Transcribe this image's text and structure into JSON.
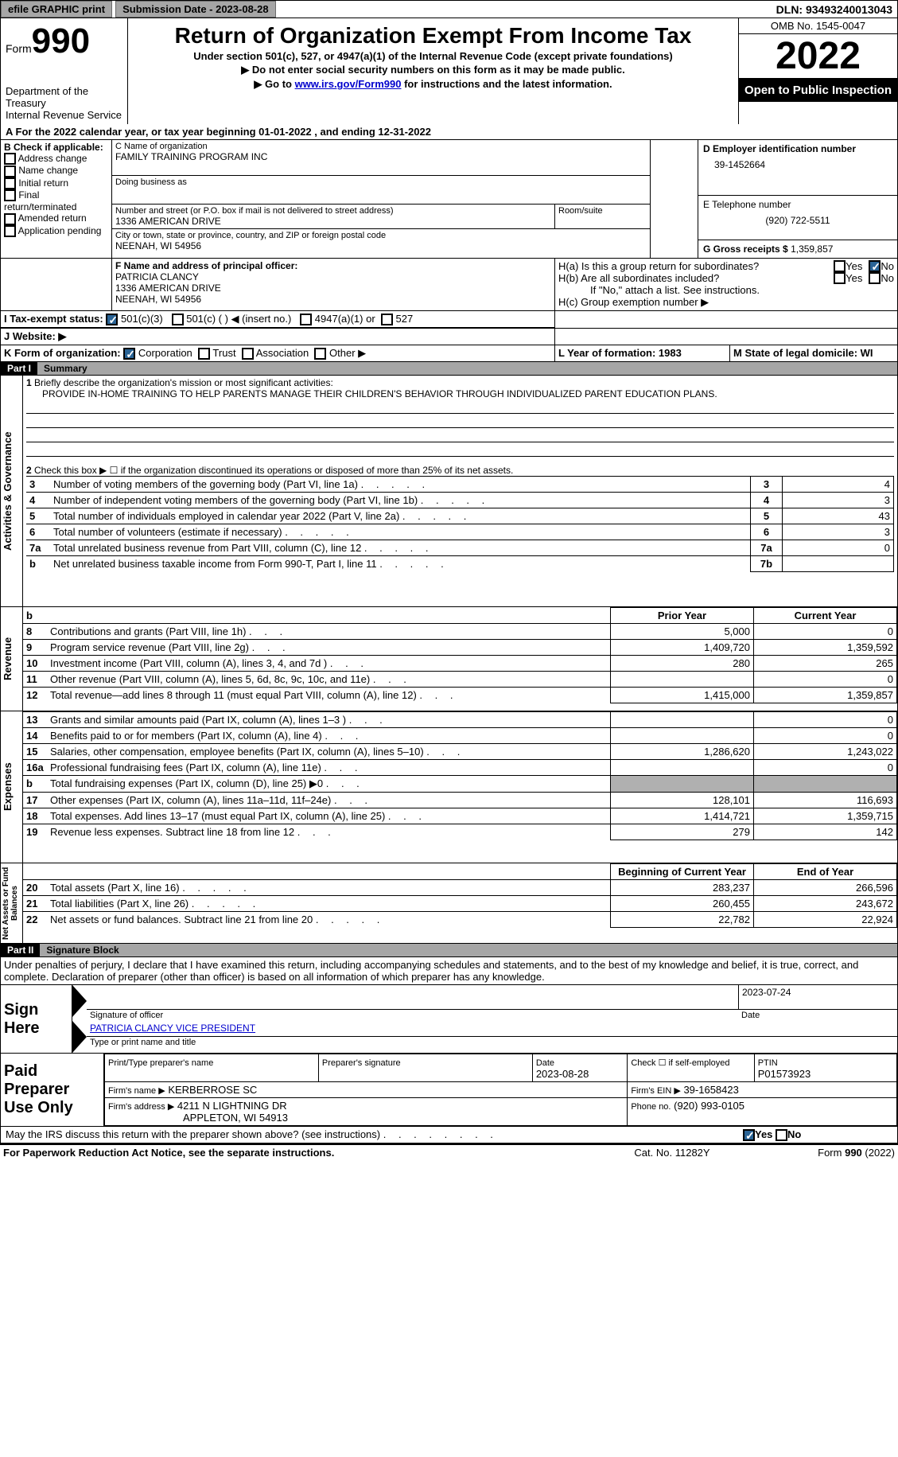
{
  "topbar": {
    "efile_label": "efile GRAPHIC print",
    "submission_label": "Submission Date - 2023-08-28",
    "dln_label": "DLN: 93493240013043"
  },
  "header": {
    "form_label": "Form",
    "form_number": "990",
    "dept_text": "Department of the Treasury",
    "irs_text": "Internal Revenue Service",
    "title": "Return of Organization Exempt From Income Tax",
    "subtitle": "Under section 501(c), 527, or 4947(a)(1) of the Internal Revenue Code (except private foundations)",
    "note1": "▶ Do not enter social security numbers on this form as it may be made public.",
    "note2_pre": "▶ Go to ",
    "note2_link": "www.irs.gov/Form990",
    "note2_post": " for instructions and the latest information.",
    "omb": "OMB No. 1545-0047",
    "year": "2022",
    "open_text": "Open to Public Inspection"
  },
  "line_a": "For the 2022 calendar year, or tax year beginning 01-01-2022    , and ending 12-31-2022",
  "section_b": {
    "label": "B Check if applicable:",
    "items": [
      "Address change",
      "Name change",
      "Initial return",
      "Final return/terminated",
      "Amended return",
      "Application pending"
    ]
  },
  "section_c": {
    "label_name": "C Name of organization",
    "org_name": "FAMILY TRAINING PROGRAM INC",
    "dba_label": "Doing business as",
    "street_label": "Number and street (or P.O. box if mail is not delivered to street address)",
    "street": "1336 AMERICAN DRIVE",
    "room_label": "Room/suite",
    "city_label": "City or town, state or province, country, and ZIP or foreign postal code",
    "city": "NEENAH, WI  54956"
  },
  "section_d": {
    "label": "D Employer identification number",
    "value": "39-1452664"
  },
  "section_e": {
    "label": "E Telephone number",
    "value": "(920) 722-5511"
  },
  "section_g": {
    "label": "G Gross receipts $",
    "value": "1,359,857"
  },
  "section_f": {
    "label": "F  Name and address of principal officer:",
    "name": "PATRICIA CLANCY",
    "street": "1336 AMERICAN DRIVE",
    "city": "NEENAH, WI  54956"
  },
  "section_h": {
    "ha_label": "H(a)  Is this a group return for subordinates?",
    "hb_label": "H(b)  Are all subordinates included?",
    "hb_note": "If \"No,\" attach a list. See instructions.",
    "hc_label": "H(c)  Group exemption number ▶",
    "yes": "Yes",
    "no": "No"
  },
  "section_i": {
    "label": "I    Tax-exempt status:",
    "i501c3": "501(c)(3)",
    "i501c": "501(c) (  ) ◀ (insert no.)",
    "i4947": "4947(a)(1) or",
    "i527": "527"
  },
  "section_j": {
    "label": "J    Website: ▶"
  },
  "section_k": {
    "label": "K Form of organization:",
    "corp": "Corporation",
    "trust": "Trust",
    "assoc": "Association",
    "other": "Other ▶"
  },
  "section_l": {
    "label": "L Year of formation: 1983"
  },
  "section_m": {
    "label": "M State of legal domicile: WI"
  },
  "part1": {
    "band": "Part I",
    "title": "Summary"
  },
  "p1_line1_label": "Briefly describe the organization's mission or most significant activities:",
  "p1_line1_text": "PROVIDE IN-HOME TRAINING TO HELP PARENTS MANAGE THEIR CHILDREN'S BEHAVIOR THROUGH INDIVIDUALIZED PARENT EDUCATION PLANS.",
  "p1_line2": "Check this box ▶ ☐ if the organization discontinued its operations or disposed of more than 25% of its net assets.",
  "p1_rows_top": [
    {
      "n": "3",
      "label": "Number of voting members of the governing body (Part VI, line 1a)",
      "box": "3",
      "val": "4"
    },
    {
      "n": "4",
      "label": "Number of independent voting members of the governing body (Part VI, line 1b)",
      "box": "4",
      "val": "3"
    },
    {
      "n": "5",
      "label": "Total number of individuals employed in calendar year 2022 (Part V, line 2a)",
      "box": "5",
      "val": "43"
    },
    {
      "n": "6",
      "label": "Total number of volunteers (estimate if necessary)",
      "box": "6",
      "val": "3"
    },
    {
      "n": "7a",
      "label": "Total unrelated business revenue from Part VIII, column (C), line 12",
      "box": "7a",
      "val": "0"
    },
    {
      "n": "b",
      "label": "Net unrelated business taxable income from Form 990-T, Part I, line 11",
      "box": "7b",
      "val": ""
    }
  ],
  "p1_col_prior": "Prior Year",
  "p1_col_current": "Current Year",
  "p1_revenue": [
    {
      "n": "8",
      "label": "Contributions and grants (Part VIII, line 1h)",
      "p": "5,000",
      "c": "0"
    },
    {
      "n": "9",
      "label": "Program service revenue (Part VIII, line 2g)",
      "p": "1,409,720",
      "c": "1,359,592"
    },
    {
      "n": "10",
      "label": "Investment income (Part VIII, column (A), lines 3, 4, and 7d )",
      "p": "280",
      "c": "265"
    },
    {
      "n": "11",
      "label": "Other revenue (Part VIII, column (A), lines 5, 6d, 8c, 9c, 10c, and 11e)",
      "p": "",
      "c": "0"
    },
    {
      "n": "12",
      "label": "Total revenue—add lines 8 through 11 (must equal Part VIII, column (A), line 12)",
      "p": "1,415,000",
      "c": "1,359,857"
    }
  ],
  "p1_expenses": [
    {
      "n": "13",
      "label": "Grants and similar amounts paid (Part IX, column (A), lines 1–3 )",
      "p": "",
      "c": "0"
    },
    {
      "n": "14",
      "label": "Benefits paid to or for members (Part IX, column (A), line 4)",
      "p": "",
      "c": "0"
    },
    {
      "n": "15",
      "label": "Salaries, other compensation, employee benefits (Part IX, column (A), lines 5–10)",
      "p": "1,286,620",
      "c": "1,243,022"
    },
    {
      "n": "16a",
      "label": "Professional fundraising fees (Part IX, column (A), line 11e)",
      "p": "",
      "c": "0"
    },
    {
      "n": "b",
      "label": "Total fundraising expenses (Part IX, column (D), line 25) ▶0",
      "p": "shade",
      "c": "shade"
    },
    {
      "n": "17",
      "label": "Other expenses (Part IX, column (A), lines 11a–11d, 11f–24e)",
      "p": "128,101",
      "c": "116,693"
    },
    {
      "n": "18",
      "label": "Total expenses. Add lines 13–17 (must equal Part IX, column (A), line 25)",
      "p": "1,414,721",
      "c": "1,359,715"
    },
    {
      "n": "19",
      "label": "Revenue less expenses. Subtract line 18 from line 12",
      "p": "279",
      "c": "142"
    }
  ],
  "p1_col_begin": "Beginning of Current Year",
  "p1_col_end": "End of Year",
  "p1_net": [
    {
      "n": "20",
      "label": "Total assets (Part X, line 16)",
      "p": "283,237",
      "c": "266,596"
    },
    {
      "n": "21",
      "label": "Total liabilities (Part X, line 26)",
      "p": "260,455",
      "c": "243,672"
    },
    {
      "n": "22",
      "label": "Net assets or fund balances. Subtract line 21 from line 20",
      "p": "22,782",
      "c": "22,924"
    }
  ],
  "vlabels": {
    "act": "Activities & Governance",
    "rev": "Revenue",
    "exp": "Expenses",
    "net": "Net Assets or Fund Balances"
  },
  "part2": {
    "band": "Part II",
    "title": "Signature Block"
  },
  "p2_decl": "Under penalties of perjury, I declare that I have examined this return, including accompanying schedules and statements, and to the best of my knowledge and belief, it is true, correct, and complete. Declaration of preparer (other than officer) is based on all information of which preparer has any knowledge.",
  "sign": {
    "here_label": "Sign Here",
    "sig_label": "Signature of officer",
    "date_val": "2023-07-24",
    "date_label": "Date",
    "name": "PATRICIA CLANCY VICE PRESIDENT",
    "name_label": "Type or print name and title"
  },
  "preparer": {
    "label": "Paid Preparer Use Only",
    "print_label": "Print/Type preparer's name",
    "sig_label": "Preparer's signature",
    "date_label": "Date",
    "date_val": "2023-08-28",
    "check_label": "Check ☐ if self-employed",
    "ptin_label": "PTIN",
    "ptin_val": "P01573923",
    "firm_name_label": "Firm's name    ▶",
    "firm_name": "KERBERROSE SC",
    "firm_ein_label": "Firm's EIN ▶",
    "firm_ein": "39-1658423",
    "firm_addr_label": "Firm's address ▶",
    "firm_addr1": "4211 N LIGHTNING DR",
    "firm_addr2": "APPLETON, WI  54913",
    "phone_label": "Phone no.",
    "phone": "(920) 993-0105"
  },
  "bottom": {
    "discuss": "May the IRS discuss this return with the preparer shown above? (see instructions)",
    "yes": "Yes",
    "no": "No",
    "paperwork": "For Paperwork Reduction Act Notice, see the separate instructions.",
    "cat": "Cat. No. 11282Y",
    "formno": "Form 990 (2022)"
  }
}
